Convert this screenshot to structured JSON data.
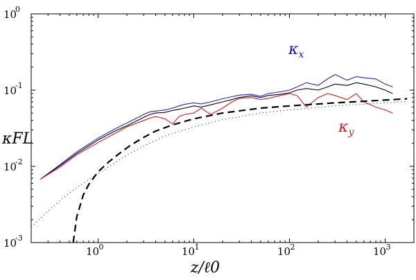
{
  "chart_data": {
    "type": "line",
    "title": "",
    "xlabel": "z/ℓ0",
    "ylabel": "κFL",
    "xscale": "log",
    "yscale": "log",
    "xlim": [
      0.2,
      2000
    ],
    "ylim": [
      0.001,
      1
    ],
    "x_ticks": [
      {
        "value": 1,
        "label": "10",
        "exp": "0"
      },
      {
        "value": 10,
        "label": "10",
        "exp": "1"
      },
      {
        "value": 100,
        "label": "10",
        "exp": "2"
      },
      {
        "value": 1000,
        "label": "10",
        "exp": "3"
      }
    ],
    "y_ticks": [
      {
        "value": 0.001,
        "label": "10",
        "exp": "-3"
      },
      {
        "value": 0.01,
        "label": "10",
        "exp": "-2"
      },
      {
        "value": 0.1,
        "label": "10",
        "exp": "-1"
      },
      {
        "value": 1,
        "label": "10",
        "exp": "0"
      }
    ],
    "annotations": [
      {
        "text": "κ",
        "sub": "x",
        "color": "#1010c8"
      },
      {
        "text": "κ",
        "sub": "y",
        "color": "#e01818"
      }
    ],
    "series": [
      {
        "name": "kappa_x",
        "color": "#1f1fd6",
        "style": "solid",
        "x": [
          0.25,
          0.4,
          0.6,
          1,
          1.5,
          2,
          3,
          3.5,
          4,
          5,
          6,
          7,
          8,
          10,
          12,
          15,
          20,
          25,
          30,
          40,
          50,
          60,
          80,
          100,
          120,
          150,
          200,
          250,
          300,
          400,
          500,
          600,
          800,
          1000,
          1200
        ],
        "y": [
          0.0068,
          0.0105,
          0.0155,
          0.0235,
          0.031,
          0.037,
          0.048,
          0.052,
          0.053,
          0.055,
          0.058,
          0.062,
          0.065,
          0.068,
          0.066,
          0.07,
          0.077,
          0.082,
          0.086,
          0.088,
          0.083,
          0.09,
          0.095,
          0.1,
          0.11,
          0.125,
          0.115,
          0.14,
          0.16,
          0.135,
          0.15,
          0.145,
          0.14,
          0.12,
          0.11
        ]
      },
      {
        "name": "kappa_total",
        "color": "#000000",
        "style": "solid",
        "x": [
          0.25,
          0.4,
          0.6,
          1,
          1.5,
          2,
          3,
          3.5,
          4,
          5,
          6,
          7,
          8,
          10,
          12,
          15,
          20,
          25,
          30,
          40,
          50,
          60,
          80,
          100,
          120,
          150,
          200,
          250,
          300,
          400,
          500,
          600,
          800,
          1000,
          1200
        ],
        "y": [
          0.0068,
          0.0102,
          0.0148,
          0.0222,
          0.029,
          0.034,
          0.044,
          0.048,
          0.05,
          0.051,
          0.054,
          0.056,
          0.058,
          0.062,
          0.06,
          0.064,
          0.07,
          0.075,
          0.08,
          0.084,
          0.08,
          0.085,
          0.088,
          0.092,
          0.1,
          0.105,
          0.1,
          0.11,
          0.12,
          0.115,
          0.125,
          0.12,
          0.11,
          0.1,
          0.09
        ]
      },
      {
        "name": "kappa_y",
        "color": "#e01818",
        "style": "solid",
        "x": [
          0.25,
          0.4,
          0.6,
          1,
          1.5,
          2,
          3,
          3.5,
          4,
          5,
          6,
          7,
          8,
          10,
          12,
          15,
          20,
          25,
          30,
          40,
          50,
          60,
          80,
          100,
          120,
          150,
          200,
          250,
          300,
          400,
          500,
          600,
          800,
          1000,
          1200
        ],
        "y": [
          0.0068,
          0.0098,
          0.0142,
          0.0205,
          0.027,
          0.033,
          0.04,
          0.043,
          0.045,
          0.042,
          0.036,
          0.045,
          0.048,
          0.05,
          0.058,
          0.048,
          0.058,
          0.07,
          0.078,
          0.08,
          0.075,
          0.078,
          0.085,
          0.09,
          0.085,
          0.06,
          0.08,
          0.09,
          0.085,
          0.075,
          0.09,
          0.07,
          0.06,
          0.055,
          0.05
        ]
      },
      {
        "name": "dashed_fit",
        "color": "#000000",
        "style": "dashed",
        "x": [
          0.55,
          0.6,
          0.7,
          0.8,
          1,
          1.3,
          1.7,
          2.2,
          3,
          4,
          6,
          10,
          20,
          50,
          100,
          300,
          1000,
          1700
        ],
        "y": [
          0.001,
          0.0022,
          0.0042,
          0.0058,
          0.0085,
          0.0115,
          0.015,
          0.019,
          0.024,
          0.029,
          0.035,
          0.042,
          0.05,
          0.058,
          0.062,
          0.068,
          0.074,
          0.077
        ]
      },
      {
        "name": "dotted_fit",
        "color": "#000000",
        "style": "dotted",
        "x": [
          0.2,
          0.3,
          0.5,
          0.8,
          1,
          1.5,
          2,
          3,
          5,
          10,
          20,
          50,
          100,
          300,
          1000,
          1700
        ],
        "y": [
          0.0016,
          0.0026,
          0.0045,
          0.0067,
          0.008,
          0.0112,
          0.014,
          0.0185,
          0.025,
          0.033,
          0.041,
          0.05,
          0.055,
          0.062,
          0.068,
          0.071
        ]
      }
    ]
  }
}
